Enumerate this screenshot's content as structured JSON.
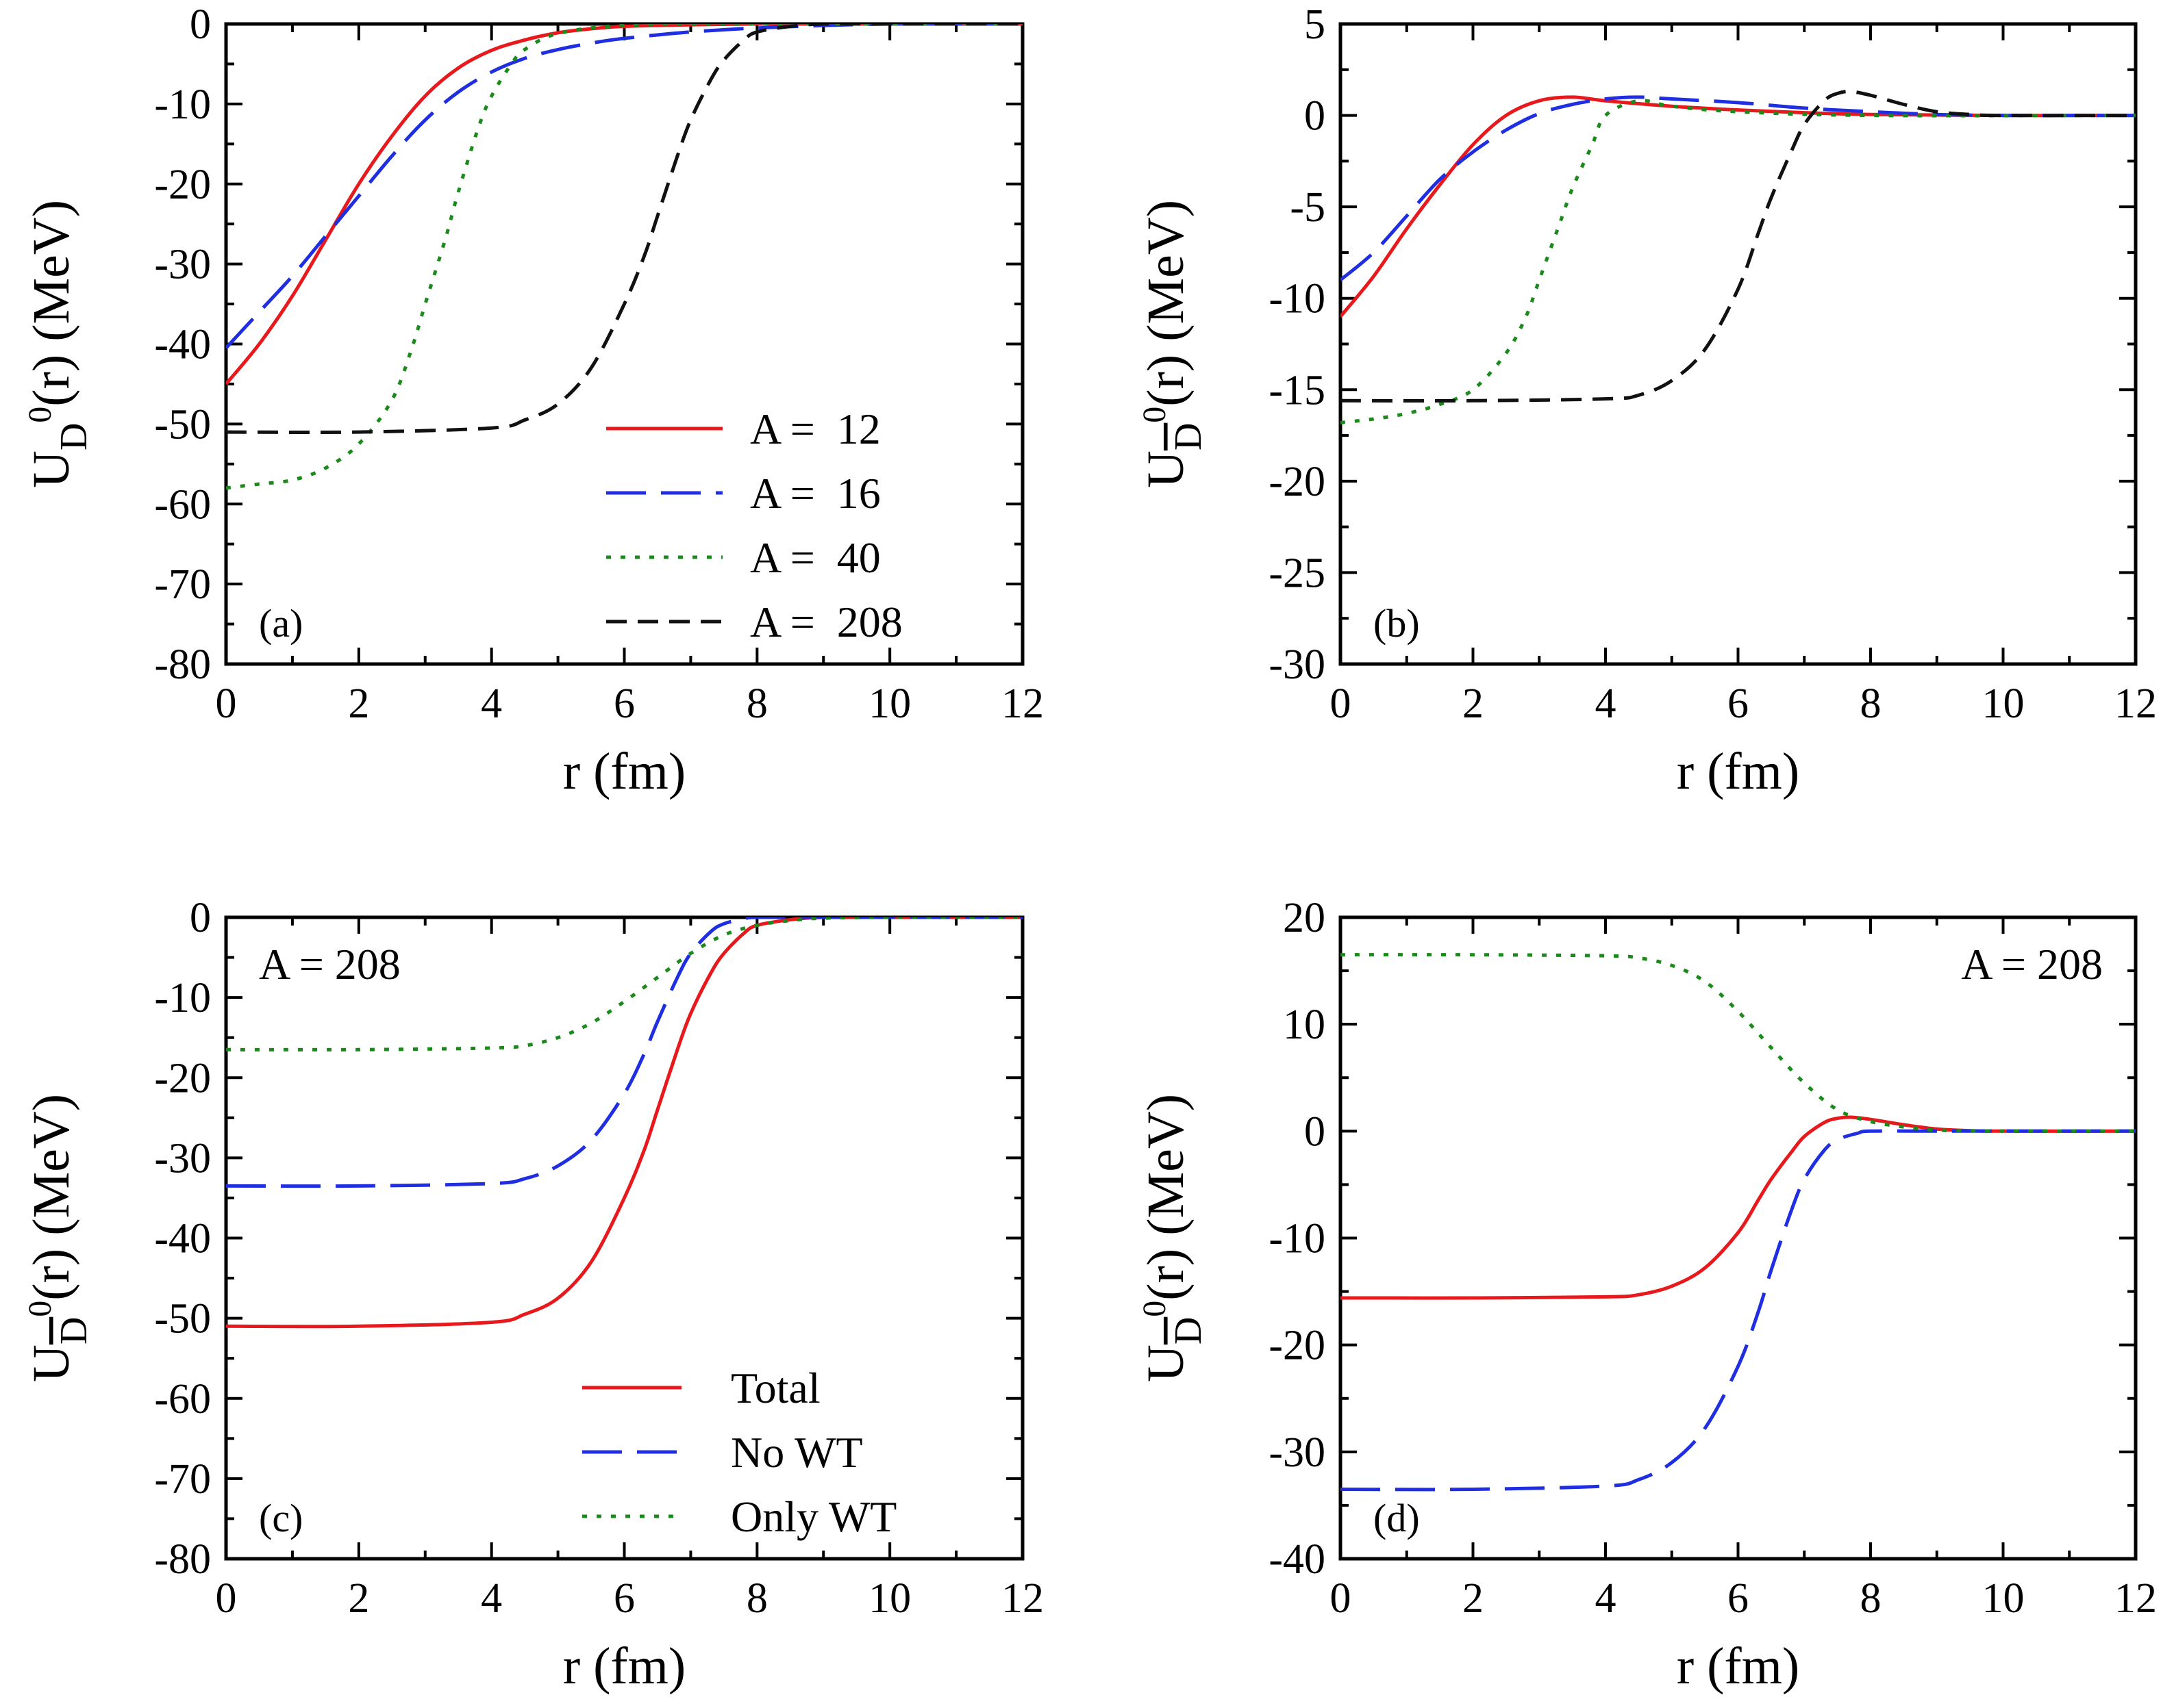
{
  "figure": {
    "chart_data": [
      {
        "panel": "(a)",
        "type": "line",
        "xlabel": "r (fm)",
        "ylabel": {
          "main": "U",
          "sub": "D",
          "sup": "0",
          "arg": "(r) (MeV)",
          "bar": false
        },
        "xlim": [
          0,
          12
        ],
        "ylim": [
          -80,
          0
        ],
        "xticks": [
          0,
          2,
          4,
          6,
          8,
          10,
          12
        ],
        "yticks": [
          -80,
          -70,
          -60,
          -50,
          -40,
          -30,
          -20,
          -10,
          0
        ],
        "legend_position": "bottom-right",
        "annotation": "",
        "series": [
          {
            "name": "A =  12",
            "color": "#e8191c",
            "dash": "solid",
            "x": [
              0,
              0.5,
              1,
              1.5,
              2,
              2.5,
              3,
              3.5,
              4,
              4.5,
              5,
              5.5,
              6,
              7,
              8,
              10,
              12
            ],
            "y": [
              -45,
              -40,
              -34,
              -27,
              -20,
              -14,
              -9,
              -5.5,
              -3.3,
              -2,
              -1.1,
              -0.6,
              -0.3,
              -0.1,
              0,
              0,
              0
            ]
          },
          {
            "name": "A =  16",
            "color": "#1f2ee0",
            "dash": "long-dash",
            "x": [
              0,
              0.5,
              1,
              1.5,
              2,
              2.5,
              3,
              3.5,
              4,
              4.5,
              5,
              5.5,
              6,
              7,
              8,
              9,
              10,
              12
            ],
            "y": [
              -40.5,
              -36,
              -31.5,
              -26.5,
              -21.5,
              -16.5,
              -12,
              -8.5,
              -6,
              -4.3,
              -3.2,
              -2.4,
              -1.8,
              -1,
              -0.5,
              -0.2,
              0,
              0
            ]
          },
          {
            "name": "A =  40",
            "color": "#1a8a1a",
            "dash": "dotted",
            "x": [
              0,
              0.5,
              1,
              1.5,
              2,
              2.5,
              2.8,
              3,
              3.3,
              3.5,
              3.8,
              4,
              4.3,
              4.5,
              5,
              6,
              8,
              12
            ],
            "y": [
              -58,
              -57.5,
              -57,
              -55.5,
              -52.5,
              -47,
              -40.5,
              -35,
              -27,
              -21,
              -13,
              -9,
              -5,
              -3.2,
              -1.2,
              -0.2,
              0,
              0
            ]
          },
          {
            "name": "A =  208",
            "color": "#111111",
            "dash": "short-dash",
            "x": [
              0,
              2,
              4,
              4.5,
              5,
              5.5,
              6,
              6.3,
              6.5,
              6.8,
              7,
              7.3,
              7.5,
              7.8,
              8,
              8.5,
              9,
              10,
              12
            ],
            "y": [
              -51,
              -51,
              -50.5,
              -49.5,
              -47.5,
              -43,
              -35,
              -29,
              -24,
              -16.5,
              -12,
              -7,
              -4.5,
              -2,
              -1,
              -0.3,
              0,
              0,
              0
            ]
          }
        ]
      },
      {
        "panel": "(b)",
        "type": "line",
        "xlabel": "r (fm)",
        "ylabel": {
          "main": "U",
          "sub": "D",
          "sup": "0",
          "arg": "(r) (MeV)",
          "bar": true
        },
        "xlim": [
          0,
          12
        ],
        "ylim": [
          -30,
          5
        ],
        "xticks": [
          0,
          2,
          4,
          6,
          8,
          10,
          12
        ],
        "yticks": [
          -30,
          -25,
          -20,
          -15,
          -10,
          -5,
          0,
          5
        ],
        "legend_position": "",
        "annotation": "",
        "series": [
          {
            "name": "",
            "color": "#e8191c",
            "dash": "solid",
            "x": [
              0,
              0.5,
              1,
              1.5,
              2,
              2.5,
              3,
              3.5,
              4,
              5,
              6,
              7,
              8,
              10,
              12
            ],
            "y": [
              -11,
              -8.8,
              -6.2,
              -3.8,
              -1.6,
              0,
              0.8,
              1,
              0.8,
              0.5,
              0.3,
              0.15,
              0.05,
              0,
              0
            ]
          },
          {
            "name": "",
            "color": "#1f2ee0",
            "dash": "long-dash",
            "x": [
              0,
              0.5,
              1,
              1.5,
              2,
              2.5,
              3,
              3.5,
              4,
              4.5,
              5,
              6,
              7,
              8,
              9,
              10,
              12
            ],
            "y": [
              -9,
              -7.5,
              -5.5,
              -3.5,
              -2,
              -0.8,
              0.1,
              0.6,
              0.9,
              1,
              0.9,
              0.7,
              0.4,
              0.2,
              0.05,
              0,
              0
            ]
          },
          {
            "name": "",
            "color": "#1a8a1a",
            "dash": "dotted",
            "x": [
              0,
              0.5,
              1,
              1.5,
              2,
              2.5,
              2.8,
              3,
              3.3,
              3.5,
              3.8,
              4,
              4.5,
              5,
              6,
              8,
              12
            ],
            "y": [
              -16.8,
              -16.6,
              -16.3,
              -15.8,
              -15,
              -13,
              -11,
              -9,
              -6,
              -4,
              -1.6,
              0,
              0.8,
              0.5,
              0.2,
              0,
              0
            ]
          },
          {
            "name": "",
            "color": "#111111",
            "dash": "short-dash",
            "x": [
              0,
              2,
              4,
              4.5,
              5,
              5.5,
              6,
              6.3,
              6.5,
              6.8,
              7,
              7.3,
              7.5,
              7.7,
              8,
              8.5,
              9,
              9.5,
              10,
              12
            ],
            "y": [
              -15.6,
              -15.6,
              -15.5,
              -15.3,
              -14.5,
              -12.8,
              -9.5,
              -6.5,
              -4.5,
              -2,
              -0.5,
              0.8,
              1.2,
              1.3,
              1.1,
              0.6,
              0.2,
              0.05,
              0,
              0
            ]
          }
        ]
      },
      {
        "panel": "(c)",
        "type": "line",
        "xlabel": "r (fm)",
        "ylabel": {
          "main": "U",
          "sub": "D",
          "sup": "0",
          "arg": "(r) (MeV)",
          "bar": true
        },
        "xlim": [
          0,
          12
        ],
        "ylim": [
          -80,
          0
        ],
        "xticks": [
          0,
          2,
          4,
          6,
          8,
          10,
          12
        ],
        "yticks": [
          -80,
          -70,
          -60,
          -50,
          -40,
          -30,
          -20,
          -10,
          0
        ],
        "legend_position": "bottom-right",
        "annotation": "A = 208",
        "series": [
          {
            "name": "Total",
            "color": "#e8191c",
            "dash": "solid",
            "x": [
              0,
              2,
              4,
              4.5,
              5,
              5.5,
              6,
              6.3,
              6.5,
              6.8,
              7,
              7.3,
              7.5,
              7.8,
              8,
              8.5,
              9,
              10,
              12
            ],
            "y": [
              -51,
              -51,
              -50.5,
              -49.5,
              -47.5,
              -43,
              -35,
              -29,
              -24,
              -16.5,
              -12,
              -7,
              -4.5,
              -2,
              -1,
              -0.3,
              0,
              0,
              0
            ]
          },
          {
            "name": "No WT",
            "color": "#1f2ee0",
            "dash": "long-dash",
            "x": [
              0,
              2,
              4,
              4.5,
              5,
              5.5,
              6,
              6.3,
              6.5,
              6.8,
              7,
              7.3,
              7.5,
              7.8,
              8,
              9,
              12
            ],
            "y": [
              -33.5,
              -33.5,
              -33.2,
              -32.6,
              -31,
              -27.8,
              -22,
              -17,
              -13,
              -7.5,
              -4.5,
              -1.8,
              -0.8,
              -0.2,
              0,
              0,
              0
            ]
          },
          {
            "name": "Only WT",
            "color": "#1a8a1a",
            "dash": "dotted",
            "x": [
              0,
              2,
              4,
              4.5,
              5,
              5.5,
              6,
              6.5,
              7,
              7.5,
              8,
              8.5,
              9,
              10,
              12
            ],
            "y": [
              -16.5,
              -16.5,
              -16.3,
              -16,
              -15,
              -13.2,
              -10.5,
              -7.5,
              -4.5,
              -2.2,
              -1,
              -0.4,
              -0.1,
              0,
              0
            ]
          }
        ]
      },
      {
        "panel": "(d)",
        "type": "line",
        "xlabel": "r (fm)",
        "ylabel": {
          "main": "U",
          "sub": "D",
          "sup": "0",
          "arg": "(r) (MeV)",
          "bar": true
        },
        "xlim": [
          0,
          12
        ],
        "ylim": [
          -40,
          20
        ],
        "xticks": [
          0,
          2,
          4,
          6,
          8,
          10,
          12
        ],
        "yticks": [
          -40,
          -30,
          -20,
          -10,
          0,
          10,
          20
        ],
        "legend_position": "",
        "annotation": "A = 208",
        "series": [
          {
            "name": "",
            "color": "#e8191c",
            "dash": "solid",
            "x": [
              0,
              2,
              4,
              4.5,
              5,
              5.5,
              6,
              6.3,
              6.5,
              6.8,
              7,
              7.3,
              7.5,
              7.7,
              8,
              8.5,
              9,
              9.5,
              10,
              12
            ],
            "y": [
              -15.6,
              -15.6,
              -15.5,
              -15.3,
              -14.5,
              -12.8,
              -9.5,
              -6.5,
              -4.5,
              -2,
              -0.5,
              0.8,
              1.2,
              1.3,
              1.1,
              0.6,
              0.2,
              0.05,
              0,
              0
            ]
          },
          {
            "name": "",
            "color": "#1f2ee0",
            "dash": "long-dash",
            "x": [
              0,
              2,
              4,
              4.5,
              5,
              5.5,
              6,
              6.3,
              6.5,
              6.8,
              7,
              7.3,
              7.5,
              7.8,
              8,
              9,
              12
            ],
            "y": [
              -33.5,
              -33.5,
              -33.2,
              -32.6,
              -31,
              -27.8,
              -22,
              -17,
              -13,
              -7.5,
              -4.5,
              -1.8,
              -0.8,
              -0.2,
              0,
              0,
              0
            ]
          },
          {
            "name": "",
            "color": "#1a8a1a",
            "dash": "dotted",
            "x": [
              0,
              2,
              4,
              4.5,
              5,
              5.5,
              6,
              6.5,
              7,
              7.5,
              8,
              8.5,
              9,
              10,
              12
            ],
            "y": [
              16.5,
              16.5,
              16.4,
              16.2,
              15.5,
              14,
              11.2,
              7.8,
              4.5,
              2,
              0.9,
              0.4,
              0.1,
              0,
              0
            ]
          }
        ]
      }
    ]
  }
}
